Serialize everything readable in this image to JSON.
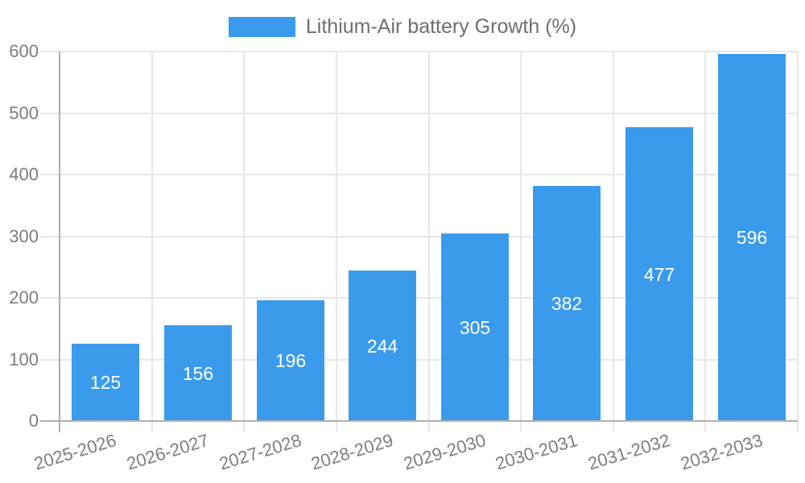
{
  "chart_data": {
    "type": "bar",
    "series_name": "Lithium-Air battery Growth (%)",
    "categories": [
      "2025-2026",
      "2026-2027",
      "2027-2028",
      "2028-2029",
      "2029-2030",
      "2030-2031",
      "2031-2032",
      "2032-2033"
    ],
    "values": [
      125,
      156,
      196,
      244,
      305,
      382,
      477,
      596
    ],
    "y_tick_labels": [
      "0",
      "100",
      "200",
      "300",
      "400",
      "500",
      "600"
    ],
    "ylim": [
      0,
      600
    ],
    "y_tick_step": 100,
    "legend_position": "top",
    "grid": true,
    "bar_color": "#3A9BEC",
    "value_label_color": "#ffffff",
    "tick_label_color": "#7d7d7d",
    "legend_text_color": "#6e6e6e",
    "grid_line_color": "#e7e7e7",
    "axis_line_color": "#b0b0b0"
  }
}
